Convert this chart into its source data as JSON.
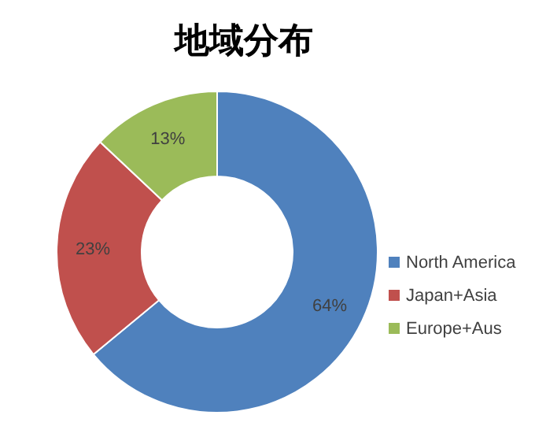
{
  "chart_data": {
    "type": "donut",
    "title": "地域分布",
    "categories": [
      "North America",
      "Japan+Asia",
      "Europe+Aus"
    ],
    "values": [
      64,
      23,
      13
    ],
    "colors": [
      "#4f81bd",
      "#c0504d",
      "#9bbb59"
    ],
    "value_labels": [
      "64%",
      "23%",
      "13%"
    ],
    "legend": "right"
  }
}
